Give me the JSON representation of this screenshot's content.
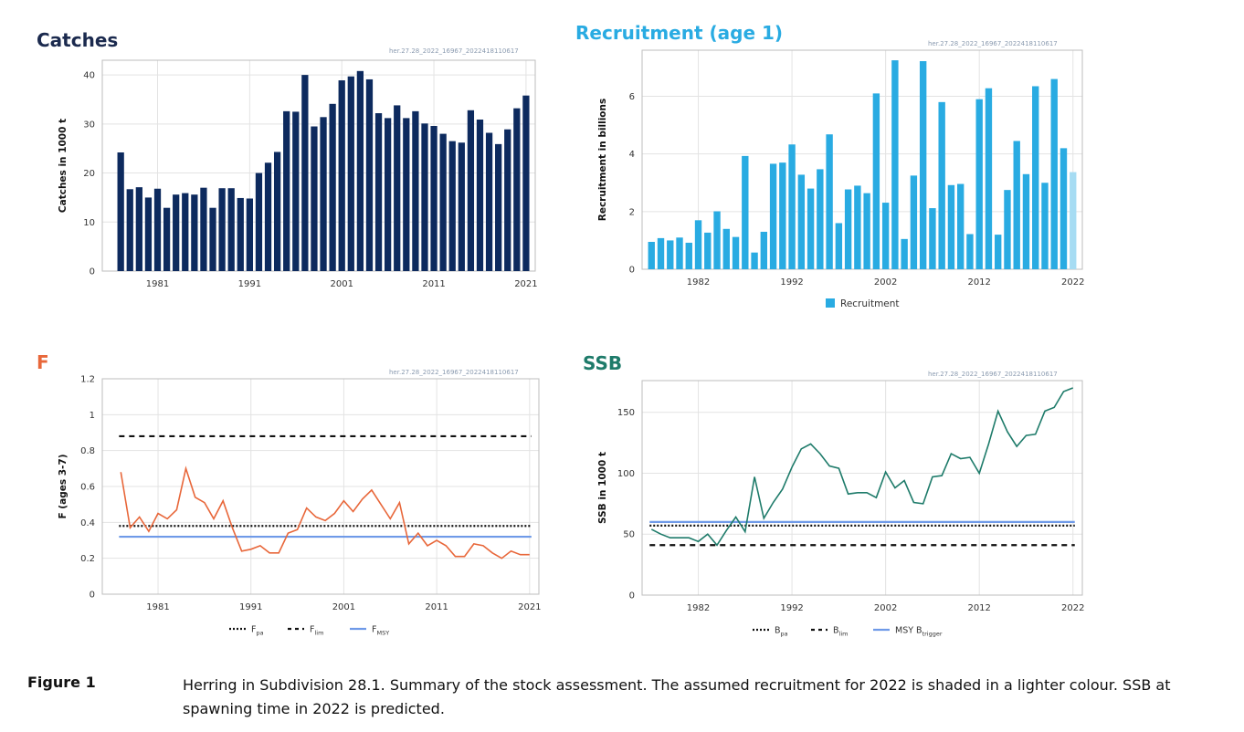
{
  "figure": {
    "label": "Figure 1",
    "caption": "Herring in Subdivision 28.1. Summary of the stock assessment. The assumed recruitment for 2022 is shaded in a lighter colour. SSB at spawning time in 2022 is predicted."
  },
  "colors": {
    "catches": "#0d2a5e",
    "recruitment": "#29abe2",
    "recruitment_light": "#a6dcf3",
    "f_line": "#e8673a",
    "ssb_line": "#1e7b6a",
    "f_title": "#e8673a",
    "ssb_title": "#1e7b6a",
    "ref_blue": "#6f9ae8",
    "ref_black": "#111111"
  },
  "panels": {
    "catches": {
      "title": "Catches",
      "stamp": "her.27.28_2022_16967_2022418110617"
    },
    "recruitment": {
      "title": "Recruitment (age 1)",
      "stamp": "her.27.28_2022_16967_2022418110617"
    },
    "f": {
      "title": "F",
      "stamp": "her.27.28_2022_16967_2022418110617"
    },
    "ssb": {
      "title": "SSB",
      "stamp": "her.27.28_2022_16967_2022418110617"
    }
  },
  "chart_data": [
    {
      "id": "catches",
      "type": "bar",
      "title": "Catches",
      "ylabel": "Catches in 1000 t",
      "ylim": [
        0,
        43
      ],
      "yticks": [
        0,
        10,
        20,
        30,
        40
      ],
      "xticks": [
        1981,
        1991,
        2001,
        2011,
        2021
      ],
      "xlim": [
        1975,
        2022
      ],
      "grid": true,
      "x": [
        1977,
        1978,
        1979,
        1980,
        1981,
        1982,
        1983,
        1984,
        1985,
        1986,
        1987,
        1988,
        1989,
        1990,
        1991,
        1992,
        1993,
        1994,
        1995,
        1996,
        1997,
        1998,
        1999,
        2000,
        2001,
        2002,
        2003,
        2004,
        2005,
        2006,
        2007,
        2008,
        2009,
        2010,
        2011,
        2012,
        2013,
        2014,
        2015,
        2016,
        2017,
        2018,
        2019,
        2020,
        2021
      ],
      "values": [
        24.2,
        16.7,
        17.1,
        15.0,
        16.8,
        12.9,
        15.6,
        15.9,
        15.6,
        17.0,
        12.9,
        16.9,
        16.9,
        14.9,
        14.8,
        20.0,
        22.1,
        24.3,
        32.6,
        32.5,
        40.0,
        29.5,
        31.4,
        34.1,
        38.9,
        39.7,
        40.8,
        39.1,
        32.2,
        31.2,
        33.8,
        31.2,
        32.6,
        30.1,
        29.6,
        28.0,
        26.5,
        26.2,
        32.8,
        30.9,
        28.2,
        25.9,
        28.9,
        33.2,
        35.8
      ]
    },
    {
      "id": "recruitment",
      "type": "bar",
      "title": "Recruitment (age 1)",
      "ylabel": "Recruitment in billions",
      "ylim": [
        0,
        7.6
      ],
      "yticks": [
        0,
        2,
        4,
        6
      ],
      "xticks": [
        1982,
        1992,
        2002,
        2012,
        2022
      ],
      "xlim": [
        1976,
        2023
      ],
      "grid": true,
      "legend": {
        "position": "bottom-center",
        "entries": [
          "Recruitment"
        ]
      },
      "x": [
        1977,
        1978,
        1979,
        1980,
        1981,
        1982,
        1983,
        1984,
        1985,
        1986,
        1987,
        1988,
        1989,
        1990,
        1991,
        1992,
        1993,
        1994,
        1995,
        1996,
        1997,
        1998,
        1999,
        2000,
        2001,
        2002,
        2003,
        2004,
        2005,
        2006,
        2007,
        2008,
        2009,
        2010,
        2011,
        2012,
        2013,
        2014,
        2015,
        2016,
        2017,
        2018,
        2019,
        2020,
        2021,
        2022
      ],
      "values": [
        0.95,
        1.08,
        1.0,
        1.1,
        0.92,
        1.7,
        1.27,
        2.01,
        1.4,
        1.12,
        3.93,
        0.58,
        1.3,
        3.66,
        3.7,
        4.33,
        3.28,
        2.8,
        3.47,
        4.68,
        1.6,
        2.77,
        2.9,
        2.64,
        6.1,
        2.31,
        7.25,
        1.05,
        3.25,
        7.22,
        2.12,
        5.8,
        2.92,
        2.96,
        1.22,
        5.9,
        6.28,
        1.2,
        2.75,
        4.45,
        3.3,
        6.35,
        3.0,
        6.6,
        4.2,
        3.37
      ],
      "assumed_year": 2022
    },
    {
      "id": "f",
      "type": "line",
      "title": "F",
      "ylabel": "F (ages 3-7)",
      "ylim": [
        0,
        1.2
      ],
      "yticks": [
        0,
        0.2,
        0.4,
        0.6,
        0.8,
        1,
        1.2
      ],
      "ytick_labels": [
        "0",
        "0.2",
        "0.4",
        "0.6",
        "0.8",
        "1",
        "1.2"
      ],
      "xticks": [
        1981,
        1991,
        2001,
        2011,
        2021
      ],
      "xlim": [
        1975,
        2022
      ],
      "grid": true,
      "x": [
        1977,
        1978,
        1979,
        1980,
        1981,
        1982,
        1983,
        1984,
        1985,
        1986,
        1987,
        1988,
        1989,
        1990,
        1991,
        1992,
        1993,
        1994,
        1995,
        1996,
        1997,
        1998,
        1999,
        2000,
        2001,
        2002,
        2003,
        2004,
        2005,
        2006,
        2007,
        2008,
        2009,
        2010,
        2011,
        2012,
        2013,
        2014,
        2015,
        2016,
        2017,
        2018,
        2019,
        2020,
        2021
      ],
      "values": [
        0.68,
        0.37,
        0.43,
        0.35,
        0.45,
        0.42,
        0.47,
        0.7,
        0.54,
        0.51,
        0.42,
        0.52,
        0.37,
        0.24,
        0.25,
        0.27,
        0.23,
        0.23,
        0.34,
        0.36,
        0.48,
        0.43,
        0.41,
        0.45,
        0.52,
        0.46,
        0.53,
        0.58,
        0.5,
        0.42,
        0.51,
        0.28,
        0.34,
        0.27,
        0.3,
        0.27,
        0.21,
        0.21,
        0.28,
        0.27,
        0.23,
        0.2,
        0.24,
        0.22,
        0.22
      ],
      "reference_lines": [
        {
          "label_main": "F",
          "label_sub": "pa",
          "value": 0.38,
          "style": "dotted",
          "color": "#111111"
        },
        {
          "label_main": "F",
          "label_sub": "lim",
          "value": 0.88,
          "style": "dashed",
          "color": "#111111"
        },
        {
          "label_main": "F",
          "label_sub": "MSY",
          "value": 0.32,
          "style": "solid",
          "color": "#6f9ae8"
        }
      ],
      "legend": {
        "position": "bottom-center"
      }
    },
    {
      "id": "ssb",
      "type": "line",
      "title": "SSB",
      "ylabel": "SSB in 1000 t",
      "ylim": [
        0,
        176
      ],
      "yticks": [
        0,
        50,
        100,
        150
      ],
      "xticks": [
        1982,
        1992,
        2002,
        2012,
        2022
      ],
      "xlim": [
        1976,
        2023
      ],
      "grid": true,
      "x": [
        1977,
        1978,
        1979,
        1980,
        1981,
        1982,
        1983,
        1984,
        1985,
        1986,
        1987,
        1988,
        1989,
        1990,
        1991,
        1992,
        1993,
        1994,
        1995,
        1996,
        1997,
        1998,
        1999,
        2000,
        2001,
        2002,
        2003,
        2004,
        2005,
        2006,
        2007,
        2008,
        2009,
        2010,
        2011,
        2012,
        2013,
        2014,
        2015,
        2016,
        2017,
        2018,
        2019,
        2020,
        2021,
        2022
      ],
      "values": [
        54,
        50,
        47,
        47,
        47,
        44,
        50,
        41,
        53,
        64,
        52,
        97,
        63,
        76,
        87,
        105,
        120,
        124,
        116,
        106,
        104,
        83,
        84,
        84,
        80,
        101,
        88,
        94,
        76,
        75,
        97,
        98,
        116,
        112,
        113,
        100,
        124,
        151,
        134,
        122,
        131,
        132,
        151,
        154,
        167,
        170
      ],
      "reference_lines": [
        {
          "label_main": "B",
          "label_sub": "pa",
          "value": 57,
          "style": "dotted",
          "color": "#111111"
        },
        {
          "label_main": "B",
          "label_sub": "lim",
          "value": 41,
          "style": "dashed",
          "color": "#111111"
        },
        {
          "label_main": "MSY B",
          "label_sub": "trigger",
          "value": 60,
          "style": "solid",
          "color": "#6f9ae8"
        }
      ],
      "legend": {
        "position": "bottom-center"
      }
    }
  ]
}
